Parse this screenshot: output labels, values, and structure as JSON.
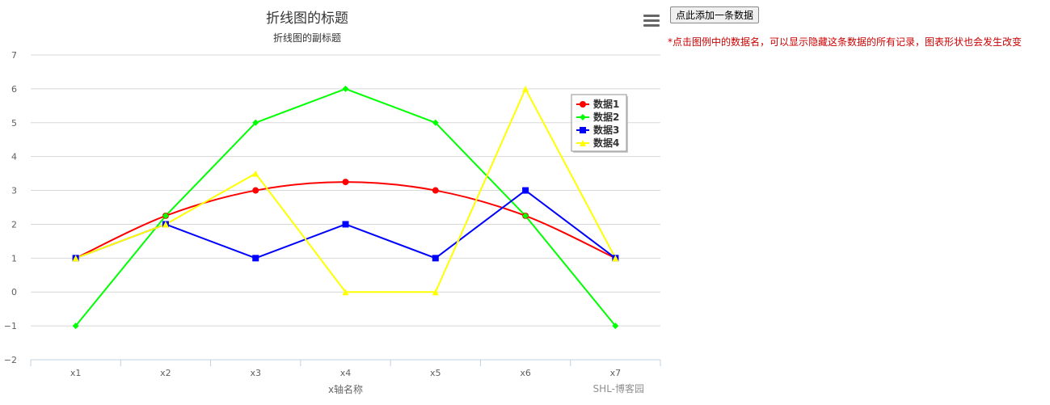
{
  "page": {
    "add_button_label": "点此添加一条数据",
    "hint_text": "*点击图例中的数据名，可以显示隐藏这条数据的所有记录，图表形状也会发生改变",
    "menu_icon": "hamburger-menu-icon"
  },
  "chart_data": {
    "type": "line",
    "title": "折线图的标题",
    "subtitle": "折线图的副标题",
    "xlabel": "x轴名称",
    "ylabel": "",
    "credits": "SHL-博客园",
    "categories": [
      "x1",
      "x2",
      "x3",
      "x4",
      "x5",
      "x6",
      "x7"
    ],
    "ylim": [
      -2,
      7
    ],
    "yticks": [
      -2,
      -1,
      0,
      1,
      2,
      3,
      4,
      5,
      6,
      7
    ],
    "grid": true,
    "legend_position": "top-right",
    "series": [
      {
        "name": "数据1",
        "color": "#ff0000",
        "marker": "circle",
        "smooth": true,
        "values": [
          1,
          2.25,
          3,
          3.25,
          3,
          2.25,
          1
        ]
      },
      {
        "name": "数据2",
        "color": "#00ff00",
        "marker": "diamond",
        "smooth": false,
        "values": [
          -1,
          2.25,
          5,
          6,
          5,
          2.25,
          -1
        ]
      },
      {
        "name": "数据3",
        "color": "#0000ff",
        "marker": "square",
        "smooth": false,
        "values": [
          1,
          2,
          1,
          2,
          1,
          3,
          1
        ]
      },
      {
        "name": "数据4",
        "color": "#ffff00",
        "marker": "triangle",
        "smooth": false,
        "values": [
          1,
          2,
          3.5,
          0,
          0,
          6,
          1
        ]
      }
    ]
  }
}
